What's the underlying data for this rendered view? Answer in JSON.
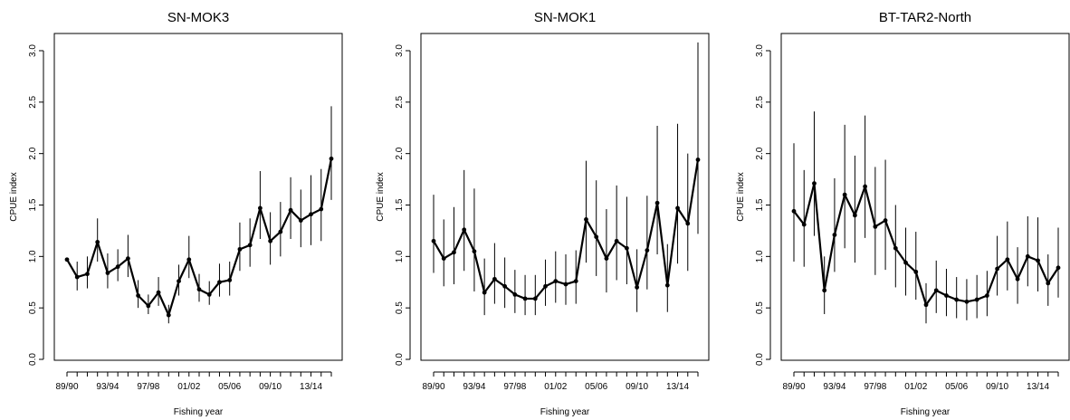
{
  "chart_data": [
    {
      "type": "line",
      "title": "SN-MOK3",
      "xlabel": "Fishing year",
      "ylabel": "CPUE index",
      "ylim": [
        0,
        3.0
      ],
      "yticks": [
        "0.0",
        "0.5",
        "1.0",
        "1.5",
        "2.0",
        "2.5",
        "3.0"
      ],
      "xtick_labels": [
        "89/90",
        "93/94",
        "97/98",
        "01/02",
        "05/06",
        "09/10",
        "13/14"
      ],
      "x": [
        "89/90",
        "90/91",
        "91/92",
        "92/93",
        "93/94",
        "94/95",
        "95/96",
        "96/97",
        "97/98",
        "98/99",
        "99/00",
        "00/01",
        "01/02",
        "02/03",
        "03/04",
        "04/05",
        "05/06",
        "06/07",
        "07/08",
        "08/09",
        "09/10",
        "10/11",
        "11/12",
        "12/13",
        "13/14",
        "14/15",
        "15/16"
      ],
      "series": [
        {
          "values": [
            0.97,
            0.8,
            0.83,
            1.14,
            0.84,
            0.9,
            0.98,
            0.62,
            0.52,
            0.65,
            0.43,
            0.76,
            0.97,
            0.68,
            0.63,
            0.75,
            0.77,
            1.07,
            1.11,
            1.47,
            1.15,
            1.24,
            1.45,
            1.35,
            1.41,
            1.46,
            1.95
          ],
          "lower": [
            0.97,
            0.67,
            0.69,
            0.95,
            0.69,
            0.76,
            0.8,
            0.5,
            0.44,
            0.52,
            0.35,
            0.62,
            0.79,
            0.56,
            0.53,
            0.61,
            0.62,
            0.86,
            0.9,
            1.17,
            0.92,
            1.0,
            1.17,
            1.09,
            1.11,
            1.15,
            1.55
          ],
          "upper": [
            0.97,
            0.95,
            1.0,
            1.37,
            1.03,
            1.07,
            1.21,
            0.77,
            0.63,
            0.8,
            0.53,
            0.92,
            1.2,
            0.83,
            0.76,
            0.93,
            0.95,
            1.33,
            1.37,
            1.83,
            1.43,
            1.53,
            1.77,
            1.65,
            1.79,
            1.85,
            2.46
          ]
        }
      ]
    },
    {
      "type": "line",
      "title": "SN-MOK1",
      "xlabel": "Fishing year",
      "ylabel": "CPUE index",
      "ylim": [
        0,
        3.0
      ],
      "yticks": [
        "0.0",
        "0.5",
        "1.0",
        "1.5",
        "2.0",
        "2.5",
        "3.0"
      ],
      "xtick_labels": [
        "89/90",
        "93/94",
        "97/98",
        "01/02",
        "05/06",
        "09/10",
        "13/14"
      ],
      "x": [
        "89/90",
        "90/91",
        "91/92",
        "92/93",
        "93/94",
        "94/95",
        "95/96",
        "96/97",
        "97/98",
        "98/99",
        "99/00",
        "00/01",
        "01/02",
        "02/03",
        "03/04",
        "04/05",
        "05/06",
        "06/07",
        "07/08",
        "08/09",
        "09/10",
        "10/11",
        "11/12",
        "12/13",
        "13/14",
        "14/15",
        "15/16"
      ],
      "series": [
        {
          "values": [
            1.15,
            0.98,
            1.04,
            1.26,
            1.05,
            0.65,
            0.78,
            0.71,
            0.63,
            0.59,
            0.59,
            0.71,
            0.76,
            0.73,
            0.76,
            1.36,
            1.19,
            0.98,
            1.15,
            1.08,
            0.7,
            1.06,
            1.52,
            0.72,
            1.47,
            1.32,
            1.94
          ],
          "lower": [
            0.84,
            0.71,
            0.73,
            0.86,
            0.66,
            0.43,
            0.54,
            0.5,
            0.45,
            0.43,
            0.43,
            0.52,
            0.55,
            0.53,
            0.54,
            0.94,
            0.81,
            0.65,
            0.77,
            0.73,
            0.46,
            0.68,
            1.02,
            0.46,
            0.93,
            0.86,
            1.22
          ],
          "upper": [
            1.6,
            1.36,
            1.48,
            1.84,
            1.66,
            0.98,
            1.13,
            0.99,
            0.87,
            0.82,
            0.82,
            0.97,
            1.05,
            1.02,
            1.06,
            1.93,
            1.74,
            1.46,
            1.69,
            1.58,
            1.07,
            1.59,
            2.27,
            1.12,
            2.29,
            2.0,
            3.08
          ]
        }
      ]
    },
    {
      "type": "line",
      "title": "BT-TAR2-North",
      "xlabel": "Fishing year",
      "ylabel": "CPUE index",
      "ylim": [
        0,
        3.0
      ],
      "yticks": [
        "0.0",
        "0.5",
        "1.0",
        "1.5",
        "2.0",
        "2.5",
        "3.0"
      ],
      "xtick_labels": [
        "89/90",
        "93/94",
        "97/98",
        "01/02",
        "05/06",
        "09/10",
        "13/14"
      ],
      "x": [
        "89/90",
        "90/91",
        "91/92",
        "92/93",
        "93/94",
        "94/95",
        "95/96",
        "96/97",
        "97/98",
        "98/99",
        "99/00",
        "00/01",
        "01/02",
        "02/03",
        "03/04",
        "04/05",
        "05/06",
        "06/07",
        "07/08",
        "08/09",
        "09/10",
        "10/11",
        "11/12",
        "12/13",
        "13/14",
        "14/15",
        "15/16"
      ],
      "series": [
        {
          "values": [
            1.44,
            1.31,
            1.71,
            0.67,
            1.21,
            1.6,
            1.4,
            1.68,
            1.29,
            1.35,
            1.08,
            0.94,
            0.85,
            0.53,
            0.67,
            0.62,
            0.58,
            0.56,
            0.58,
            0.62,
            0.88,
            0.97,
            0.78,
            1.0,
            0.96,
            0.74,
            0.89
          ],
          "lower": [
            0.95,
            0.9,
            1.2,
            0.44,
            0.85,
            1.08,
            0.94,
            1.18,
            0.82,
            0.87,
            0.7,
            0.62,
            0.58,
            0.35,
            0.45,
            0.42,
            0.4,
            0.38,
            0.4,
            0.42,
            0.62,
            0.67,
            0.54,
            0.71,
            0.66,
            0.52,
            0.6
          ],
          "upper": [
            2.1,
            1.84,
            2.41,
            1.0,
            1.76,
            2.28,
            1.98,
            2.37,
            1.87,
            1.94,
            1.5,
            1.28,
            1.24,
            0.74,
            0.96,
            0.88,
            0.8,
            0.78,
            0.82,
            0.86,
            1.2,
            1.34,
            1.09,
            1.39,
            1.38,
            1.02,
            1.28
          ]
        }
      ]
    }
  ]
}
